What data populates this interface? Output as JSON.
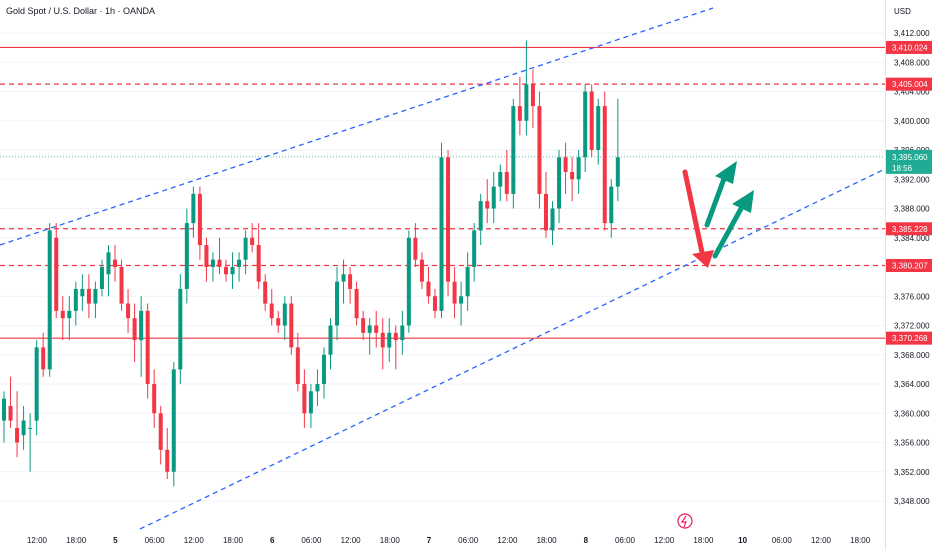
{
  "chart_data": {
    "type": "candlestick",
    "title": "Gold Spot / U.S. Dollar · 1h · OANDA",
    "currency": "USD",
    "ylim": [
      3346,
      3416
    ],
    "y_ticks": [
      "3,412.000",
      "3,408.000",
      "3,404.000",
      "3,400.000",
      "3,396.000",
      "3,392.000",
      "3,388.000",
      "3,384.000",
      "3,376.000",
      "3,372.000",
      "3,368.000",
      "3,364.000",
      "3,360.000",
      "3,356.000",
      "3,352.000",
      "3,348.000"
    ],
    "x_ticks": [
      "12:00",
      "18:00",
      "5",
      "06:00",
      "12:00",
      "18:00",
      "6",
      "06:00",
      "12:00",
      "18:00",
      "7",
      "06:00",
      "12:00",
      "18:00",
      "8",
      "06:00",
      "12:00",
      "18:00",
      "10",
      "06:00",
      "12:00",
      "18:00"
    ],
    "levels": [
      {
        "label": "3,410.024",
        "value": 3410.024,
        "style": "solid"
      },
      {
        "label": "3,405.004",
        "value": 3405.004,
        "style": "dashed"
      },
      {
        "label": "3,385.228",
        "value": 3385.228,
        "style": "dashed"
      },
      {
        "label": "3,380.207",
        "value": 3380.207,
        "style": "dashed"
      },
      {
        "label": "3,370.268",
        "value": 3370.268,
        "style": "solid"
      }
    ],
    "current_price": {
      "label": "3,395.060",
      "countdown": "18:56",
      "value": 3395.06
    },
    "candles": [
      [
        3359,
        3363,
        3356,
        3362
      ],
      [
        3361,
        3365,
        3358,
        3359
      ],
      [
        3358,
        3363,
        3354,
        3356
      ],
      [
        3357,
        3361,
        3355,
        3359
      ],
      [
        3358,
        3360,
        3352,
        3358
      ],
      [
        3359,
        3370,
        3357,
        3369
      ],
      [
        3369,
        3371,
        3365,
        3366
      ],
      [
        3366,
        3386,
        3365,
        3385
      ],
      [
        3384,
        3386,
        3373,
        3374
      ],
      [
        3374,
        3376,
        3370,
        3373
      ],
      [
        3373,
        3376,
        3370,
        3374
      ],
      [
        3374,
        3378,
        3372,
        3377
      ],
      [
        3376,
        3379,
        3374,
        3377
      ],
      [
        3377,
        3379,
        3373,
        3375
      ],
      [
        3375,
        3378,
        3373,
        3377
      ],
      [
        3377,
        3381,
        3376,
        3380
      ],
      [
        3379,
        3383,
        3376,
        3382
      ],
      [
        3381,
        3383,
        3378,
        3380
      ],
      [
        3380,
        3381,
        3374,
        3375
      ],
      [
        3375,
        3377,
        3371,
        3373
      ],
      [
        3373,
        3375,
        3367,
        3370
      ],
      [
        3370,
        3376,
        3365,
        3374
      ],
      [
        3374,
        3375,
        3362,
        3364
      ],
      [
        3364,
        3366,
        3358,
        3360
      ],
      [
        3360,
        3361,
        3353,
        3355
      ],
      [
        3355,
        3358,
        3351,
        3352
      ],
      [
        3352,
        3367,
        3350,
        3366
      ],
      [
        3366,
        3379,
        3364,
        3377
      ],
      [
        3377,
        3388,
        3375,
        3386
      ],
      [
        3386,
        3391,
        3384,
        3390
      ],
      [
        3390,
        3391,
        3381,
        3383
      ],
      [
        3383,
        3384,
        3378,
        3380
      ],
      [
        3380,
        3382,
        3378,
        3381
      ],
      [
        3381,
        3384,
        3379,
        3380
      ],
      [
        3380,
        3381,
        3378,
        3379
      ],
      [
        3379,
        3382,
        3377,
        3380
      ],
      [
        3380,
        3382,
        3378,
        3381
      ],
      [
        3381,
        3385,
        3379,
        3384
      ],
      [
        3384,
        3386,
        3382,
        3383
      ],
      [
        3383,
        3386,
        3377,
        3378
      ],
      [
        3378,
        3379,
        3374,
        3375
      ],
      [
        3375,
        3377,
        3372,
        3373
      ],
      [
        3373,
        3374,
        3371,
        3372
      ],
      [
        3372,
        3376,
        3370,
        3375
      ],
      [
        3375,
        3376,
        3368,
        3369
      ],
      [
        3369,
        3371,
        3363,
        3364
      ],
      [
        3364,
        3366,
        3358,
        3360
      ],
      [
        3360,
        3364,
        3358,
        3363
      ],
      [
        3363,
        3366,
        3361,
        3364
      ],
      [
        3364,
        3369,
        3362,
        3368
      ],
      [
        3368,
        3373,
        3366,
        3372
      ],
      [
        3372,
        3380,
        3370,
        3378
      ],
      [
        3378,
        3381,
        3375,
        3379
      ],
      [
        3379,
        3380,
        3375,
        3377
      ],
      [
        3377,
        3378,
        3372,
        3373
      ],
      [
        3373,
        3374,
        3370,
        3371
      ],
      [
        3371,
        3373,
        3368,
        3372
      ],
      [
        3372,
        3374,
        3369,
        3371
      ],
      [
        3371,
        3373,
        3366,
        3369
      ],
      [
        3369,
        3373,
        3367,
        3371
      ],
      [
        3371,
        3372,
        3366,
        3370
      ],
      [
        3370,
        3374,
        3368,
        3372
      ],
      [
        3372,
        3385,
        3371,
        3384
      ],
      [
        3384,
        3386,
        3380,
        3381
      ],
      [
        3381,
        3382,
        3377,
        3378
      ],
      [
        3378,
        3380,
        3375,
        3376
      ],
      [
        3376,
        3377,
        3373,
        3374
      ],
      [
        3374,
        3397,
        3373,
        3395
      ],
      [
        3395,
        3396,
        3376,
        3378
      ],
      [
        3378,
        3380,
        3373,
        3375
      ],
      [
        3375,
        3378,
        3372,
        3376
      ],
      [
        3376,
        3382,
        3374,
        3380
      ],
      [
        3380,
        3386,
        3378,
        3385
      ],
      [
        3385,
        3390,
        3383,
        3389
      ],
      [
        3389,
        3392,
        3386,
        3388
      ],
      [
        3388,
        3393,
        3386,
        3391
      ],
      [
        3391,
        3394,
        3389,
        3393
      ],
      [
        3393,
        3396,
        3389,
        3390
      ],
      [
        3390,
        3403,
        3388,
        3402
      ],
      [
        3402,
        3406,
        3398,
        3400
      ],
      [
        3400,
        3411,
        3398,
        3405
      ],
      [
        3405,
        3407,
        3399,
        3402
      ],
      [
        3402,
        3404,
        3388,
        3390
      ],
      [
        3390,
        3393,
        3384,
        3385
      ],
      [
        3385,
        3389,
        3383,
        3388
      ],
      [
        3388,
        3396,
        3386,
        3395
      ],
      [
        3395,
        3397,
        3390,
        3393
      ],
      [
        3393,
        3395,
        3389,
        3392
      ],
      [
        3392,
        3396,
        3390,
        3395
      ],
      [
        3395,
        3405,
        3393,
        3404
      ],
      [
        3404,
        3405,
        3395,
        3396
      ],
      [
        3396,
        3403,
        3394,
        3402
      ],
      [
        3402,
        3404,
        3385,
        3386
      ],
      [
        3386,
        3392,
        3384,
        3391
      ],
      [
        3391,
        3403,
        3389,
        3395
      ]
    ]
  },
  "header": {
    "symbol_title": "Gold Spot / U.S. Dollar · 1h · OANDA"
  },
  "axis": {
    "currency_label": "USD"
  },
  "colors": {
    "up": "#089981",
    "down": "#f23645",
    "level": "#f23645",
    "trend": "#2962ff",
    "current": "#22ab94"
  }
}
